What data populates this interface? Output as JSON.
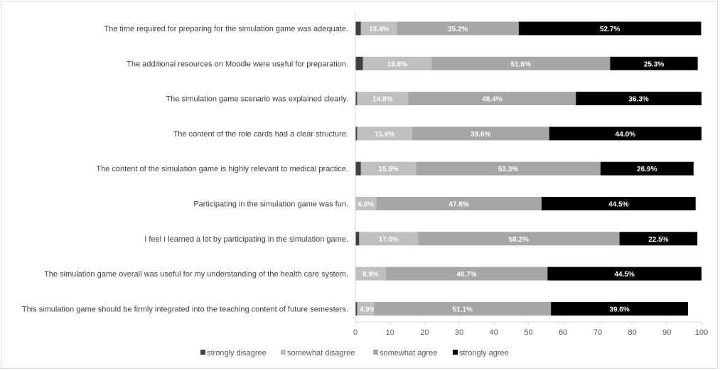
{
  "chart_data": {
    "type": "bar",
    "orientation": "horizontal",
    "stacked": true,
    "categories": [
      "The time required for preparing for the simulation game was adequate.",
      "The additional resources on Moodle were useful for preparation.",
      "The simulation game scenario was explained clearly.",
      "The content of the role cards had a clear structure.",
      "The content of the simulation game is highly relevant to medical practice.",
      "Participating in the simulation game was fun.",
      "I feel I learned a lot by participating in the simulation game.",
      "The simulation game overall was useful for my understanding of the health care system.",
      "This simulation game should be firmly integrated into the teaching content of future semesters."
    ],
    "series": [
      {
        "name": "strongly disagree",
        "color": "#404040",
        "values": [
          1.6,
          2.2,
          0.5,
          0.5,
          1.6,
          0,
          1.1,
          0,
          0.5
        ],
        "labels": [
          "",
          "",
          "",
          "",
          "",
          "",
          "",
          "",
          ""
        ]
      },
      {
        "name": "somewhat disagree",
        "color": "#bfbfbf",
        "values": [
          10.4,
          19.8,
          14.8,
          15.9,
          15.9,
          6.0,
          17.0,
          8.8,
          4.9
        ],
        "labels": [
          "10.4%",
          "19.8%",
          "14.8%",
          "15.9%",
          "15.9%",
          "6.0%",
          "17.0%",
          "8.8%",
          "4.9%"
        ]
      },
      {
        "name": "somewhat agree",
        "color": "#a6a6a6",
        "values": [
          35.2,
          51.6,
          48.4,
          39.6,
          53.3,
          47.8,
          58.2,
          46.7,
          51.1
        ],
        "labels": [
          "35.2%",
          "51.6%",
          "48.4%",
          "39.6%",
          "53.3%",
          "47.8%",
          "58.2%",
          "46.7%",
          "51.1%"
        ]
      },
      {
        "name": "strongly agree",
        "color": "#000000",
        "values": [
          52.7,
          25.3,
          36.3,
          44.0,
          26.9,
          44.5,
          22.5,
          44.5,
          39.6
        ],
        "labels": [
          "52.7%",
          "25.3%",
          "36.3%",
          "44.0%",
          "26.9%",
          "44.5%",
          "22.5%",
          "44.5%",
          "39.6%"
        ]
      }
    ],
    "xlim": [
      0,
      100
    ],
    "xticks": [
      "0",
      "10",
      "20",
      "30",
      "40",
      "50",
      "60",
      "70",
      "80",
      "90",
      "100"
    ],
    "legend_position": "bottom",
    "grid": false
  }
}
